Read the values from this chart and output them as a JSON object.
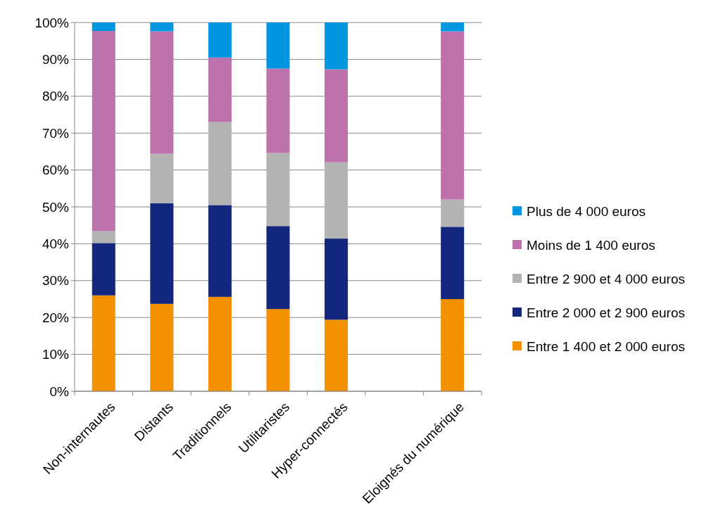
{
  "chart_data": {
    "type": "bar",
    "stacked": true,
    "categories": [
      "Non-internautes",
      "Distants",
      "Traditionnels",
      "Utilitaristes",
      "Hyper-connectés",
      null,
      "Eloignés du numérique"
    ],
    "series": [
      {
        "name": "Entre 1 400 et 2 000 euros",
        "color": "#f39000",
        "values": [
          26.0,
          23.7,
          25.6,
          22.3,
          19.4,
          null,
          25.0
        ]
      },
      {
        "name": "Entre 2 000 et 2 900 euros",
        "color": "#13277f",
        "values": [
          14.2,
          27.3,
          24.9,
          22.5,
          22.0,
          null,
          19.6
        ]
      },
      {
        "name": "Entre 2 900 et 4 000 euros",
        "color": "#b3b3b3",
        "values": [
          3.2,
          13.4,
          22.5,
          19.8,
          20.7,
          null,
          7.4
        ]
      },
      {
        "name": "Moins de 1 400 euros",
        "color": "#bd72ab",
        "values": [
          54.3,
          33.2,
          17.5,
          22.9,
          25.2,
          null,
          45.6
        ]
      },
      {
        "name": "Plus de 4 000 euros",
        "color": "#0096e0",
        "values": [
          2.3,
          2.4,
          9.5,
          12.5,
          12.7,
          null,
          2.4
        ]
      }
    ],
    "ylim": [
      0,
      100
    ],
    "yticks": [
      {
        "value": 0,
        "label": "0%"
      },
      {
        "value": 10,
        "label": "10%"
      },
      {
        "value": 20,
        "label": "20%"
      },
      {
        "value": 30,
        "label": "30%"
      },
      {
        "value": 40,
        "label": "40%"
      },
      {
        "value": 50,
        "label": "50%"
      },
      {
        "value": 60,
        "label": "60%"
      },
      {
        "value": 70,
        "label": "70%"
      },
      {
        "value": 80,
        "label": "80%"
      },
      {
        "value": 90,
        "label": "90%"
      },
      {
        "value": 100,
        "label": "100%"
      }
    ],
    "grid": "y",
    "legend": "right"
  }
}
